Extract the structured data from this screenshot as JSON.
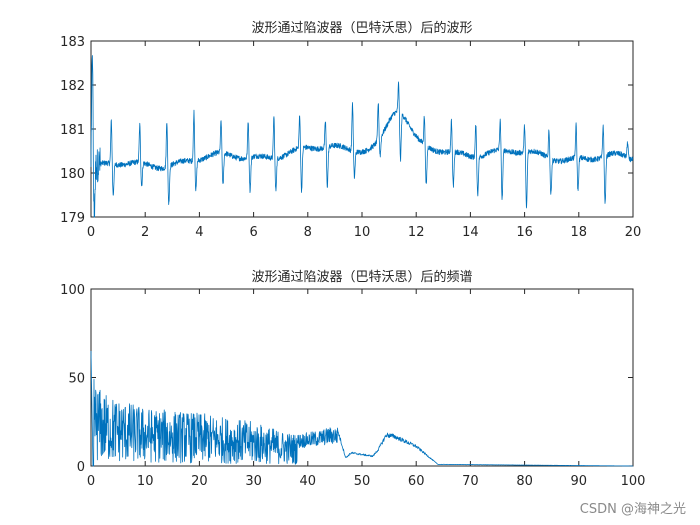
{
  "watermark": "CSDN @海神之光",
  "line_color": "#0072BD",
  "chart_data": [
    {
      "id": "waveform",
      "type": "line",
      "title": "波形通过陷波器（巴特沃思）后的波形",
      "xlabel": "",
      "ylabel": "",
      "xlim": [
        0,
        20
      ],
      "ylim": [
        179,
        183
      ],
      "xticks": [
        0,
        2,
        4,
        6,
        8,
        10,
        12,
        14,
        16,
        18,
        20
      ],
      "yticks": [
        179,
        180,
        181,
        182,
        183
      ],
      "grid": false,
      "signal": {
        "description_free": true,
        "baseline_start": 180.1,
        "baseline_mid": 180.6,
        "baseline_end": 180.3,
        "hump_center": 11.3,
        "hump_height": 0.85,
        "beat_times": [
          0.05,
          0.75,
          1.8,
          2.8,
          3.8,
          4.8,
          5.8,
          6.75,
          7.7,
          8.65,
          9.65,
          10.6,
          11.35,
          12.3,
          13.3,
          14.2,
          15.1,
          16.0,
          16.9,
          17.9,
          18.9,
          19.8
        ],
        "peak_values": [
          182.9,
          181.2,
          181.1,
          181.2,
          181.4,
          181.2,
          181.2,
          181.3,
          181.3,
          181.2,
          181.6,
          181.6,
          182.05,
          181.3,
          181.2,
          181.1,
          181.2,
          181.1,
          181.0,
          181.1,
          181.1,
          180.7
        ],
        "trough_values": [
          179.0,
          179.5,
          179.7,
          179.3,
          179.6,
          179.7,
          179.6,
          179.6,
          179.6,
          179.7,
          179.9,
          180.4,
          180.3,
          179.7,
          179.7,
          179.5,
          179.4,
          179.2,
          179.5,
          179.6,
          179.3,
          180.3
        ]
      }
    },
    {
      "id": "spectrum",
      "type": "line",
      "title": "波形通过陷波器（巴特沃思）后的频谱",
      "xlabel": "",
      "ylabel": "",
      "xlim": [
        0,
        100
      ],
      "ylim": [
        0,
        100
      ],
      "xticks": [
        0,
        10,
        20,
        30,
        40,
        50,
        60,
        70,
        80,
        90,
        100
      ],
      "yticks": [
        0,
        50,
        100
      ],
      "grid": false,
      "signal": {
        "dc_value": 65,
        "envelope_points": [
          [
            0.5,
            50
          ],
          [
            2,
            42
          ],
          [
            5,
            38
          ],
          [
            10,
            33
          ],
          [
            20,
            30
          ],
          [
            30,
            25
          ],
          [
            35,
            20
          ],
          [
            38,
            18
          ],
          [
            42,
            20
          ],
          [
            44,
            22
          ],
          [
            45.5,
            22
          ]
        ],
        "drop_points": [
          [
            45.5,
            22
          ],
          [
            47,
            5
          ],
          [
            48,
            8
          ],
          [
            52,
            6
          ],
          [
            53,
            10
          ],
          [
            54.5,
            19
          ],
          [
            56,
            18
          ],
          [
            60,
            12
          ],
          [
            64,
            1
          ],
          [
            100,
            0
          ]
        ]
      }
    }
  ]
}
